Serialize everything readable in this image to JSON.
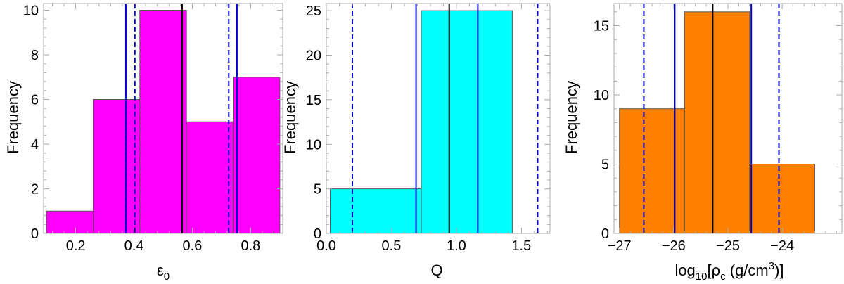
{
  "chart_data": [
    {
      "type": "bar",
      "bar_color": "#ff00ff",
      "bins": [
        [
          0.1,
          0.26
        ],
        [
          0.26,
          0.42
        ],
        [
          0.42,
          0.58
        ],
        [
          0.58,
          0.74
        ],
        [
          0.74,
          0.9
        ]
      ],
      "values": [
        1,
        6,
        10,
        5,
        7
      ],
      "xlim": [
        0.09,
        0.91
      ],
      "ylim": [
        0,
        10.3
      ],
      "xticks": [
        0.2,
        0.4,
        0.6,
        0.8
      ],
      "xticklabels": [
        "0.2",
        "0.4",
        "0.6",
        "0.8"
      ],
      "yticks": [
        0,
        2,
        4,
        6,
        8,
        10
      ],
      "yticklabels": [
        "0",
        "2",
        "4",
        "6",
        "8",
        "10"
      ],
      "ylabel": "Frequency",
      "xlabel": "ε",
      "xlabel_sub": "0",
      "vlines": [
        {
          "x": 0.565,
          "color": "#000000",
          "style": "solid"
        },
        {
          "x": 0.372,
          "color": "#0000cc",
          "style": "solid"
        },
        {
          "x": 0.753,
          "color": "#0000cc",
          "style": "solid"
        },
        {
          "x": 0.403,
          "color": "#0000cc",
          "style": "dashed"
        },
        {
          "x": 0.725,
          "color": "#0000cc",
          "style": "dashed"
        }
      ]
    },
    {
      "type": "bar",
      "bar_color": "#00ffff",
      "bins": [
        [
          0.03,
          0.73
        ],
        [
          0.73,
          1.43
        ]
      ],
      "values": [
        5,
        25
      ],
      "xlim": [
        0.0,
        1.72
      ],
      "ylim": [
        0,
        25.8
      ],
      "xticks": [
        0.0,
        0.5,
        1.0,
        1.5
      ],
      "xticklabels": [
        "0.0",
        "0.5",
        "1.0",
        "1.5"
      ],
      "yticks": [
        0,
        5,
        10,
        15,
        20,
        25
      ],
      "yticklabels": [
        "0",
        "5",
        "10",
        "15",
        "20",
        "25"
      ],
      "ylabel": "Frequency",
      "xlabel": "Q",
      "vlines": [
        {
          "x": 0.945,
          "color": "#000000",
          "style": "solid"
        },
        {
          "x": 0.69,
          "color": "#0000cc",
          "style": "solid"
        },
        {
          "x": 1.165,
          "color": "#0000cc",
          "style": "solid"
        },
        {
          "x": 0.2,
          "color": "#0000cc",
          "style": "dashed"
        },
        {
          "x": 1.625,
          "color": "#0000cc",
          "style": "dashed"
        }
      ]
    },
    {
      "type": "bar",
      "bar_color": "#ff8000",
      "bins": [
        [
          -27.0,
          -25.8
        ],
        [
          -25.8,
          -24.6
        ],
        [
          -24.6,
          -23.4
        ]
      ],
      "values": [
        9,
        16,
        5
      ],
      "xlim": [
        -27.1,
        -22.9
      ],
      "ylim": [
        0,
        16.6
      ],
      "xticks": [
        -27,
        -26,
        -25,
        -24
      ],
      "xticklabels": [
        "−27",
        "−26",
        "−25",
        "−24"
      ],
      "yticks": [
        0,
        5,
        10,
        15
      ],
      "yticklabels": [
        "0",
        "5",
        "10",
        "15"
      ],
      "ylabel": "Frequency",
      "xlabel": "log",
      "xlabel_sub": "10",
      "xlabel_rest": "[ρ",
      "xlabel_sub2": "c",
      "xlabel_units": " (g/cm",
      "xlabel_sup": "3",
      "xlabel_end": ")]",
      "vlines": [
        {
          "x": -25.28,
          "color": "#000000",
          "style": "solid"
        },
        {
          "x": -25.98,
          "color": "#0000cc",
          "style": "solid"
        },
        {
          "x": -24.57,
          "color": "#0000cc",
          "style": "solid"
        },
        {
          "x": -26.55,
          "color": "#0000cc",
          "style": "dashed"
        },
        {
          "x": -24.06,
          "color": "#0000cc",
          "style": "dashed"
        }
      ]
    }
  ]
}
